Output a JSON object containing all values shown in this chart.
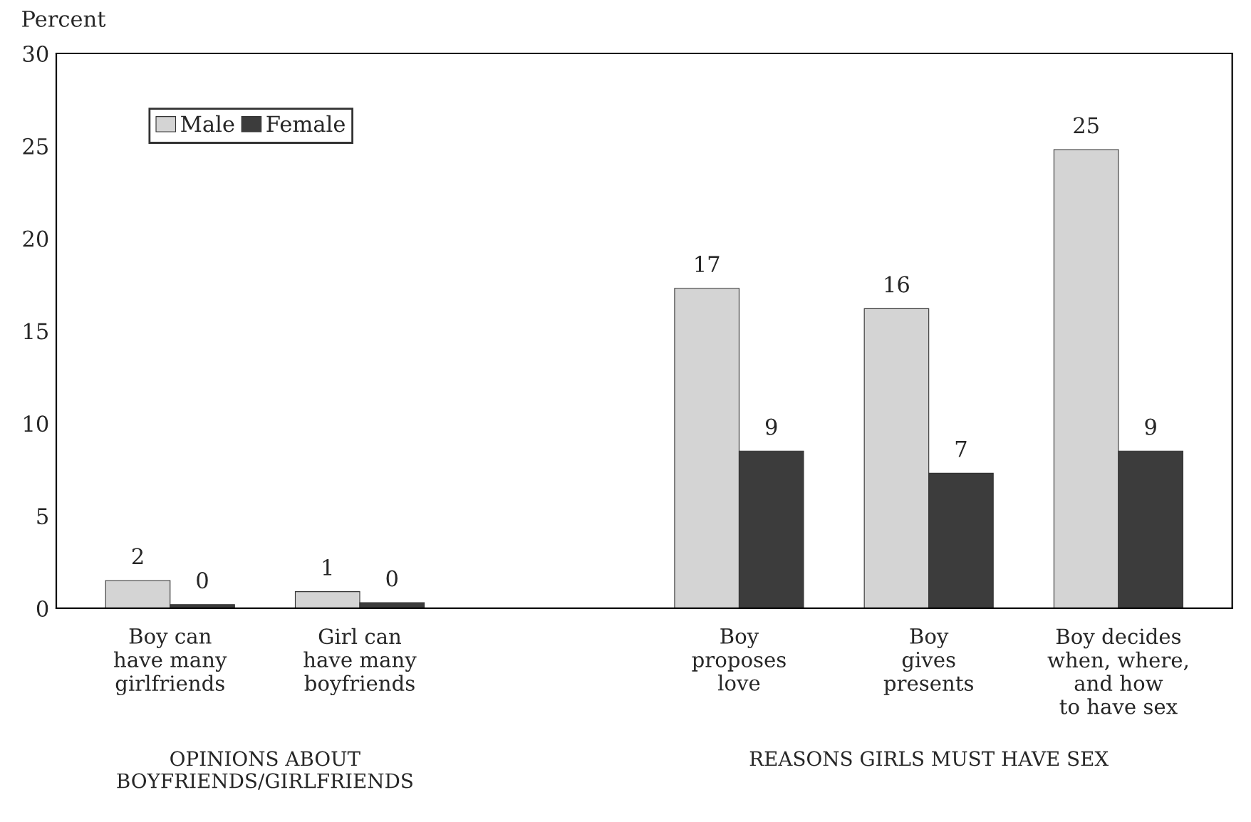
{
  "chart_data": {
    "type": "bar",
    "ylabel": "Percent",
    "categories": [
      "Boy can\nhave many\ngirlfriends",
      "Girl can\nhave many\nboyfriends",
      null,
      "Boy\nproposes\nlove",
      "Boy\ngives\npresents",
      "Boy decides\nwhen, where,\nand how\nto have sex"
    ],
    "series": [
      {
        "name": "Male",
        "color": "#d4d4d4",
        "values": [
          1.5,
          0.9,
          null,
          17.3,
          16.2,
          24.8
        ],
        "value_labels": [
          "2",
          "1",
          null,
          "17",
          "16",
          "25"
        ]
      },
      {
        "name": "Female",
        "color": "#3c3c3c",
        "values": [
          0.2,
          0.3,
          null,
          8.5,
          7.3,
          8.5
        ],
        "value_labels": [
          "0",
          "0",
          null,
          "9",
          "7",
          "9"
        ]
      }
    ],
    "annotations": [
      "OPINIONS ABOUT\nBOYFRIENDS/GIRLFRIENDS",
      "REASONS GIRLS MUST HAVE SEX"
    ],
    "ylim": [
      0,
      30
    ],
    "yticks": [
      0,
      5,
      10,
      15,
      20,
      25,
      30
    ],
    "grid": false,
    "legend": "top left"
  }
}
